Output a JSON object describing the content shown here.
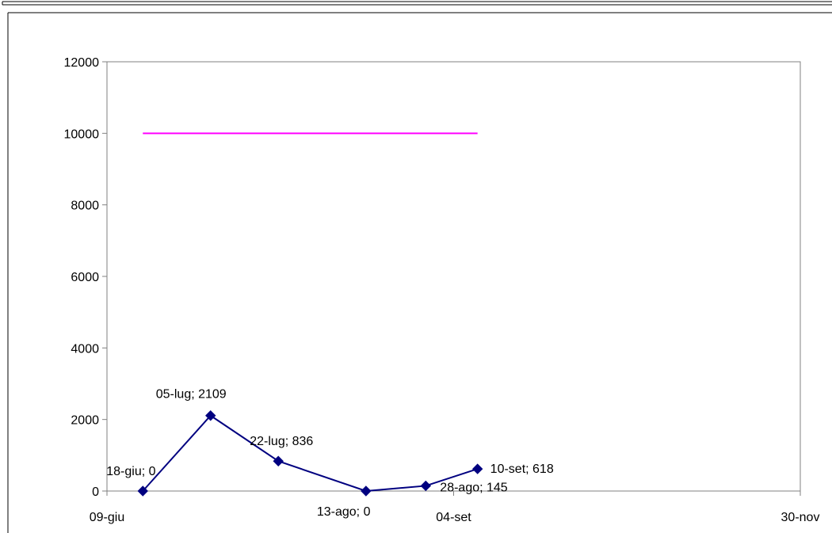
{
  "colors": {
    "background": "#ffffff",
    "frame": "#000000",
    "axis": "#808080",
    "series_main": "#000080",
    "series_reference": "#ff00ff"
  },
  "chart_data": {
    "type": "line",
    "title": "",
    "xlabel": "",
    "ylabel": "",
    "x_axis_type": "date",
    "xlim": [
      "09-giu",
      "30-nov"
    ],
    "ylim": [
      0,
      12000
    ],
    "x_ticks": [
      "09-giu",
      "04-set",
      "30-nov"
    ],
    "y_ticks": [
      0,
      2000,
      4000,
      6000,
      8000,
      10000,
      12000
    ],
    "grid": false,
    "legend": "none",
    "series": [
      {
        "x": [
          "18-giu",
          "05-lug",
          "22-lug",
          "13-ago",
          "28-ago",
          "10-set"
        ],
        "y": [
          0,
          2109,
          836,
          0,
          145,
          618
        ],
        "labels": [
          "18-giu; 0",
          "05-lug; 2109",
          "22-lug; 836",
          "13-ago; 0",
          "28-ago; 145",
          "10-set; 618"
        ],
        "marker": "diamond",
        "color": "#000080"
      },
      {
        "x": [
          "18-giu",
          "10-set"
        ],
        "y": [
          10000,
          10000
        ],
        "marker": "none",
        "color": "#ff00ff"
      }
    ]
  }
}
